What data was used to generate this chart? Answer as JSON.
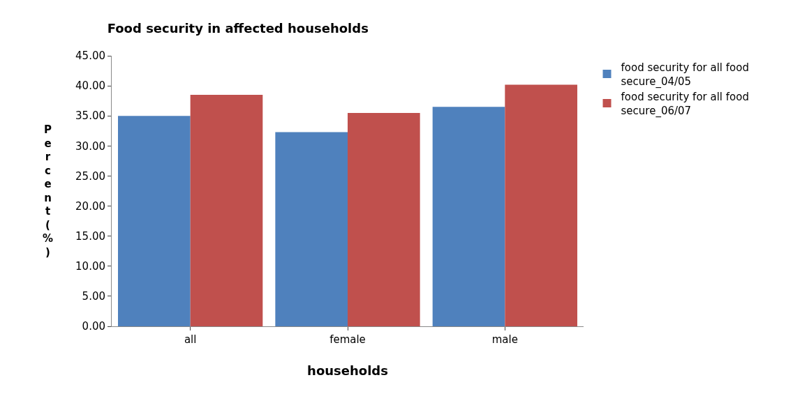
{
  "chart_data": {
    "type": "bar",
    "title": "Food security in affected households",
    "xlabel": "households",
    "ylabel": "Percent (%)",
    "categories": [
      "all",
      "female",
      "male"
    ],
    "series": [
      {
        "name": "food security for all food secure_04/05",
        "color": "#4f81bd",
        "values": [
          35.0,
          32.3,
          36.5
        ]
      },
      {
        "name": "food security for all food secure_06/07",
        "color": "#c0504d",
        "values": [
          38.5,
          35.5,
          40.2
        ]
      }
    ],
    "ylim": [
      0,
      45
    ],
    "yticks": [
      {
        "value": 0,
        "label": "0.00"
      },
      {
        "value": 5,
        "label": "5.00"
      },
      {
        "value": 10,
        "label": "10.00"
      },
      {
        "value": 15,
        "label": "15.00"
      },
      {
        "value": 20,
        "label": "20.00"
      },
      {
        "value": 25,
        "label": "25.00"
      },
      {
        "value": 30,
        "label": "30.00"
      },
      {
        "value": 35,
        "label": "35.00"
      },
      {
        "value": 40,
        "label": "40.00"
      },
      {
        "value": 45,
        "label": "45.00"
      }
    ],
    "legend": "top right"
  }
}
